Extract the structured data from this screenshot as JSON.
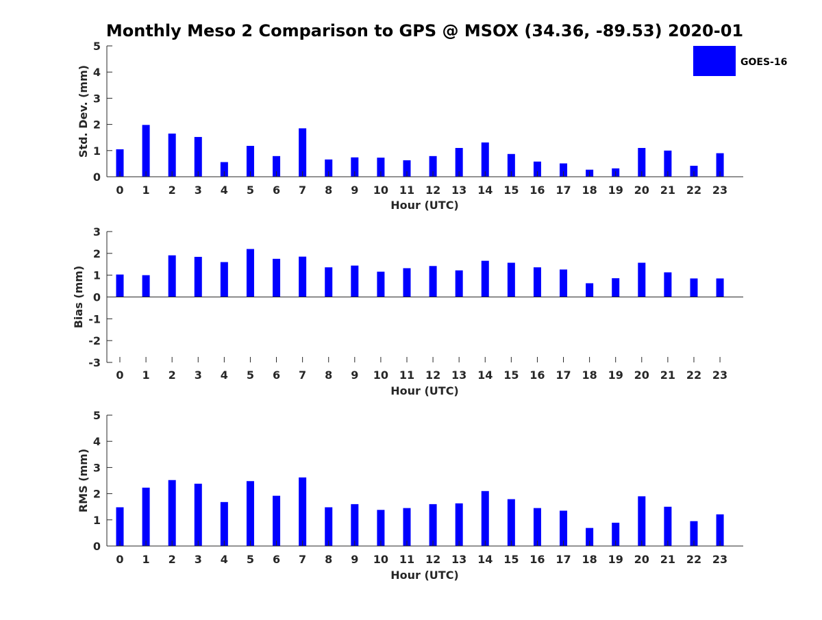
{
  "figure": {
    "title": "Monthly Meso 2 Comparison to GPS @ MSOX (34.36, -89.53) 2020-01"
  },
  "legend": {
    "entries": [
      {
        "label": "GOES-16",
        "color": "#0000ff"
      }
    ],
    "placement": "top-right"
  },
  "chart_data": [
    {
      "type": "bar",
      "title": "",
      "xlabel": "Hour (UTC)",
      "ylabel": "Std. Dev. (mm)",
      "categories": [
        "0",
        "1",
        "2",
        "3",
        "4",
        "5",
        "6",
        "7",
        "8",
        "9",
        "10",
        "11",
        "12",
        "13",
        "14",
        "15",
        "16",
        "17",
        "18",
        "19",
        "20",
        "21",
        "22",
        "23"
      ],
      "ylim": [
        0,
        5
      ],
      "yticks": [
        "0",
        "1",
        "2",
        "3",
        "4",
        "5"
      ],
      "grid": false,
      "series": [
        {
          "name": "GOES-16",
          "color": "#0000ff",
          "values": [
            1.05,
            1.98,
            1.65,
            1.52,
            0.56,
            1.18,
            0.79,
            1.85,
            0.66,
            0.74,
            0.73,
            0.63,
            0.79,
            1.1,
            1.31,
            0.87,
            0.58,
            0.51,
            0.27,
            0.32,
            1.1,
            1.0,
            0.42,
            0.9
          ]
        }
      ]
    },
    {
      "type": "bar",
      "title": "",
      "xlabel": "Hour (UTC)",
      "ylabel": "Bias (mm)",
      "categories": [
        "0",
        "1",
        "2",
        "3",
        "4",
        "5",
        "6",
        "7",
        "8",
        "9",
        "10",
        "11",
        "12",
        "13",
        "14",
        "15",
        "16",
        "17",
        "18",
        "19",
        "20",
        "21",
        "22",
        "23"
      ],
      "ylim": [
        -3,
        3
      ],
      "yticks": [
        "-3",
        "-2",
        "-1",
        "0",
        "1",
        "2",
        "3"
      ],
      "grid": false,
      "series": [
        {
          "name": "GOES-16",
          "color": "#0000ff",
          "values": [
            1.03,
            1.0,
            1.91,
            1.84,
            1.6,
            2.2,
            1.75,
            1.85,
            1.36,
            1.44,
            1.16,
            1.32,
            1.42,
            1.22,
            1.66,
            1.57,
            1.36,
            1.26,
            0.63,
            0.86,
            1.57,
            1.13,
            0.85,
            0.85
          ]
        }
      ]
    },
    {
      "type": "bar",
      "title": "",
      "xlabel": "Hour (UTC)",
      "ylabel": "RMS (mm)",
      "categories": [
        "0",
        "1",
        "2",
        "3",
        "4",
        "5",
        "6",
        "7",
        "8",
        "9",
        "10",
        "11",
        "12",
        "13",
        "14",
        "15",
        "16",
        "17",
        "18",
        "19",
        "20",
        "21",
        "22",
        "23"
      ],
      "ylim": [
        0,
        5
      ],
      "yticks": [
        "0",
        "1",
        "2",
        "3",
        "4",
        "5"
      ],
      "grid": false,
      "series": [
        {
          "name": "GOES-16",
          "color": "#0000ff",
          "values": [
            1.48,
            2.23,
            2.52,
            2.38,
            1.68,
            2.48,
            1.92,
            2.62,
            1.48,
            1.6,
            1.38,
            1.45,
            1.6,
            1.63,
            2.1,
            1.79,
            1.45,
            1.35,
            0.69,
            0.89,
            1.9,
            1.5,
            0.95,
            1.21
          ]
        }
      ]
    }
  ]
}
